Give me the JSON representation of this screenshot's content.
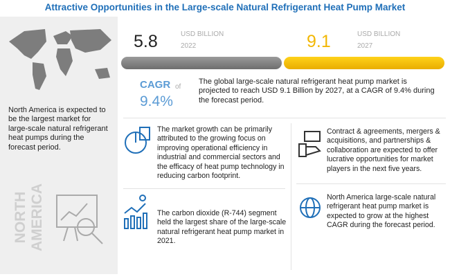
{
  "title": "Attractive Opportunities in the Large-scale Natural Refrigerant Heat Pump Market",
  "market": {
    "start": {
      "value": "5.8",
      "unit": "USD BILLION",
      "year": "2022"
    },
    "end": {
      "value": "9.1",
      "unit": "USD BILLION",
      "year": "2027"
    },
    "cagr": {
      "label": "CAGR",
      "connector": "of",
      "value": "9.4%"
    },
    "summary": "The global large-scale natural refrigerant heat pump market is projected to reach USD 9.1 Billion by 2027, at a CAGR of 9.4% during the forecast period."
  },
  "region": {
    "text": "North America is expected to be the largest market for large-scale natural refrigerant heat pumps during the forecast period.",
    "label": "NORTH AMERICA"
  },
  "points": [
    "The market growth can be primarily attributed to the growing focus on improving operational efficiency in industrial and commercial sectors and the efficacy of heat pump technology in reducing carbon footprint.",
    "Contract & agreements, mergers & acquisitions, and partnerships & collaboration are expected to offer lucrative opportunities for market players in the next five years.",
    "The carbon dioxide (R-744) segment held the largest share of the large-scale natural refrigerant heat pump market in 2021.",
    "North America large-scale natural refrigerant heat pump market is expected to grow at the highest CAGR during the forecast period."
  ]
}
